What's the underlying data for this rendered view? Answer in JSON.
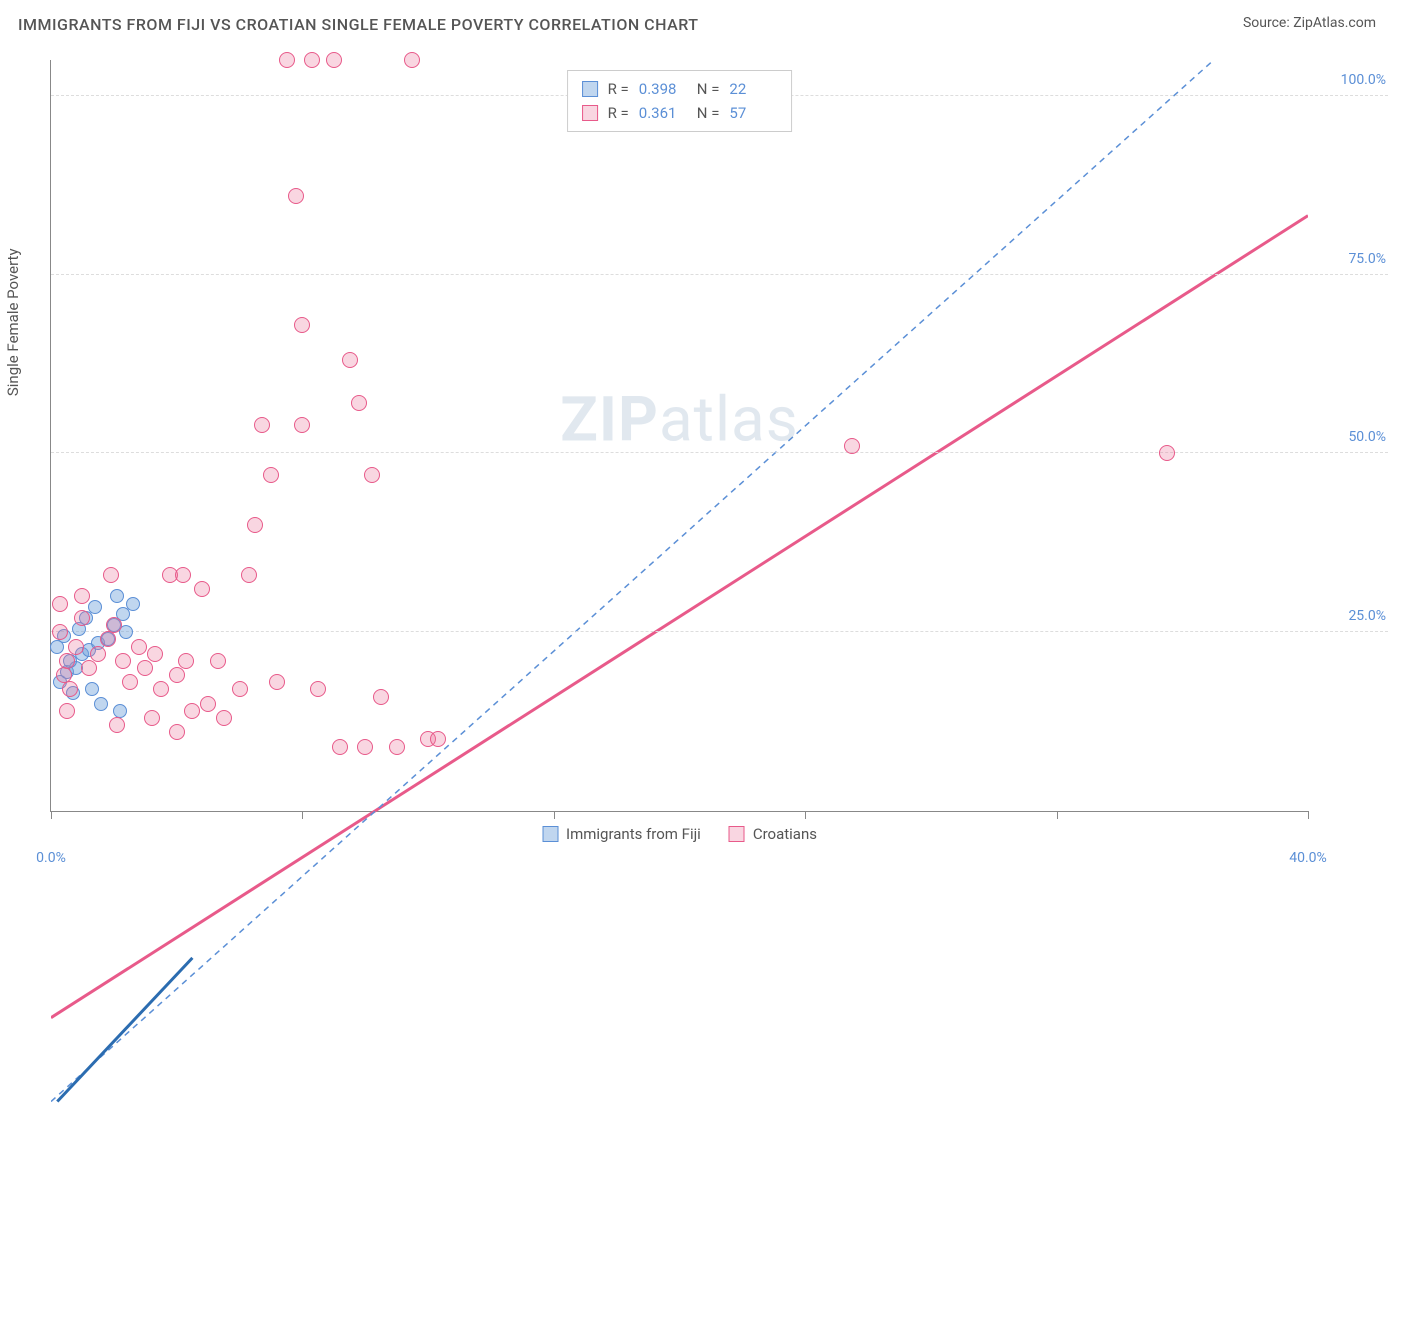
{
  "header": {
    "title": "IMMIGRANTS FROM FIJI VS CROATIAN SINGLE FEMALE POVERTY CORRELATION CHART",
    "source_label": "Source:",
    "source_name": "ZipAtlas.com"
  },
  "chart": {
    "type": "scatter",
    "y_axis_label": "Single Female Poverty",
    "xlim": [
      0,
      40
    ],
    "ylim": [
      0,
      105
    ],
    "x_ticks": [
      0,
      8,
      16,
      24,
      32,
      40
    ],
    "x_tick_labels": {
      "0": "0.0%",
      "40": "40.0%"
    },
    "y_ticks": [
      25,
      50,
      75,
      100
    ],
    "y_tick_labels": [
      "25.0%",
      "50.0%",
      "75.0%",
      "100.0%"
    ],
    "grid_color": "#dddddd",
    "axis_color": "#888888",
    "background_color": "#ffffff",
    "tick_label_color": "#5b8fd6",
    "watermark": {
      "text_bold": "ZIP",
      "text_rest": "atlas"
    }
  },
  "series": [
    {
      "name": "Immigrants from Fiji",
      "color_fill": "rgba(115,165,220,0.45)",
      "color_stroke": "#5b8fd6",
      "marker_radius": 7,
      "trend": {
        "style": "dashed",
        "color": "#5b8fd6",
        "width": 1.5,
        "x1": 0,
        "y1": 18,
        "x2": 37,
        "y2": 105
      },
      "fit_segment": {
        "color": "#2b6cb0",
        "width": 3,
        "x1": 0.2,
        "y1": 18,
        "x2": 4.5,
        "y2": 30
      },
      "stats": {
        "R": "0.398",
        "N": "22"
      },
      "points": [
        {
          "x": 0.3,
          "y": 18
        },
        {
          "x": 0.5,
          "y": 19.5
        },
        {
          "x": 0.8,
          "y": 20
        },
        {
          "x": 0.6,
          "y": 21
        },
        {
          "x": 1.0,
          "y": 22
        },
        {
          "x": 0.2,
          "y": 23
        },
        {
          "x": 1.2,
          "y": 22.5
        },
        {
          "x": 1.5,
          "y": 23.5
        },
        {
          "x": 0.4,
          "y": 24.5
        },
        {
          "x": 1.8,
          "y": 24
        },
        {
          "x": 0.9,
          "y": 25.5
        },
        {
          "x": 2.0,
          "y": 26
        },
        {
          "x": 1.1,
          "y": 27
        },
        {
          "x": 2.3,
          "y": 27.5
        },
        {
          "x": 1.4,
          "y": 28.5
        },
        {
          "x": 2.6,
          "y": 29
        },
        {
          "x": 2.1,
          "y": 30
        },
        {
          "x": 0.7,
          "y": 16.5
        },
        {
          "x": 1.6,
          "y": 15
        },
        {
          "x": 1.3,
          "y": 17
        },
        {
          "x": 2.2,
          "y": 14
        },
        {
          "x": 2.4,
          "y": 25
        }
      ]
    },
    {
      "name": "Croatians",
      "color_fill": "rgba(235,120,155,0.30)",
      "color_stroke": "#e85a8a",
      "marker_radius": 8,
      "trend": {
        "style": "solid",
        "color": "#e85a8a",
        "width": 3,
        "x1": 0,
        "y1": 25,
        "x2": 40,
        "y2": 92
      },
      "stats": {
        "R": "0.361",
        "N": "57"
      },
      "points": [
        {
          "x": 0.3,
          "y": 25
        },
        {
          "x": 0.5,
          "y": 21
        },
        {
          "x": 0.8,
          "y": 23
        },
        {
          "x": 0.4,
          "y": 19
        },
        {
          "x": 1.0,
          "y": 27
        },
        {
          "x": 1.2,
          "y": 20
        },
        {
          "x": 1.5,
          "y": 22
        },
        {
          "x": 1.8,
          "y": 24
        },
        {
          "x": 2.0,
          "y": 26
        },
        {
          "x": 2.3,
          "y": 21
        },
        {
          "x": 0.6,
          "y": 17
        },
        {
          "x": 2.5,
          "y": 18
        },
        {
          "x": 2.8,
          "y": 23
        },
        {
          "x": 3.0,
          "y": 20
        },
        {
          "x": 3.3,
          "y": 22
        },
        {
          "x": 3.5,
          "y": 17
        },
        {
          "x": 3.8,
          "y": 33
        },
        {
          "x": 4.0,
          "y": 19
        },
        {
          "x": 4.3,
          "y": 21
        },
        {
          "x": 4.5,
          "y": 14
        },
        {
          "x": 2.1,
          "y": 12
        },
        {
          "x": 3.2,
          "y": 13
        },
        {
          "x": 4.0,
          "y": 11
        },
        {
          "x": 4.8,
          "y": 31
        },
        {
          "x": 5.0,
          "y": 15
        },
        {
          "x": 5.3,
          "y": 21
        },
        {
          "x": 5.5,
          "y": 13
        },
        {
          "x": 6.0,
          "y": 17
        },
        {
          "x": 6.3,
          "y": 33
        },
        {
          "x": 6.5,
          "y": 40
        },
        {
          "x": 4.2,
          "y": 33
        },
        {
          "x": 7.0,
          "y": 47
        },
        {
          "x": 7.2,
          "y": 18
        },
        {
          "x": 7.5,
          "y": 105
        },
        {
          "x": 8.0,
          "y": 54
        },
        {
          "x": 6.7,
          "y": 54
        },
        {
          "x": 8.0,
          "y": 68
        },
        {
          "x": 8.3,
          "y": 105
        },
        {
          "x": 8.5,
          "y": 17
        },
        {
          "x": 9.0,
          "y": 105
        },
        {
          "x": 9.2,
          "y": 9
        },
        {
          "x": 9.5,
          "y": 63
        },
        {
          "x": 9.8,
          "y": 57
        },
        {
          "x": 10.0,
          "y": 9
        },
        {
          "x": 10.2,
          "y": 47
        },
        {
          "x": 10.5,
          "y": 16
        },
        {
          "x": 7.8,
          "y": 86
        },
        {
          "x": 11.0,
          "y": 9
        },
        {
          "x": 11.5,
          "y": 105
        },
        {
          "x": 12.0,
          "y": 10
        },
        {
          "x": 12.3,
          "y": 10
        },
        {
          "x": 25.5,
          "y": 51
        },
        {
          "x": 35.5,
          "y": 50
        },
        {
          "x": 0.3,
          "y": 29
        },
        {
          "x": 1.0,
          "y": 30
        },
        {
          "x": 1.9,
          "y": 33
        },
        {
          "x": 0.5,
          "y": 14
        }
      ]
    }
  ],
  "bottom_legend": [
    {
      "label": "Immigrants from Fiji",
      "fill": "rgba(115,165,220,0.45)",
      "stroke": "#5b8fd6"
    },
    {
      "label": "Croatians",
      "fill": "rgba(235,120,155,0.30)",
      "stroke": "#e85a8a"
    }
  ]
}
